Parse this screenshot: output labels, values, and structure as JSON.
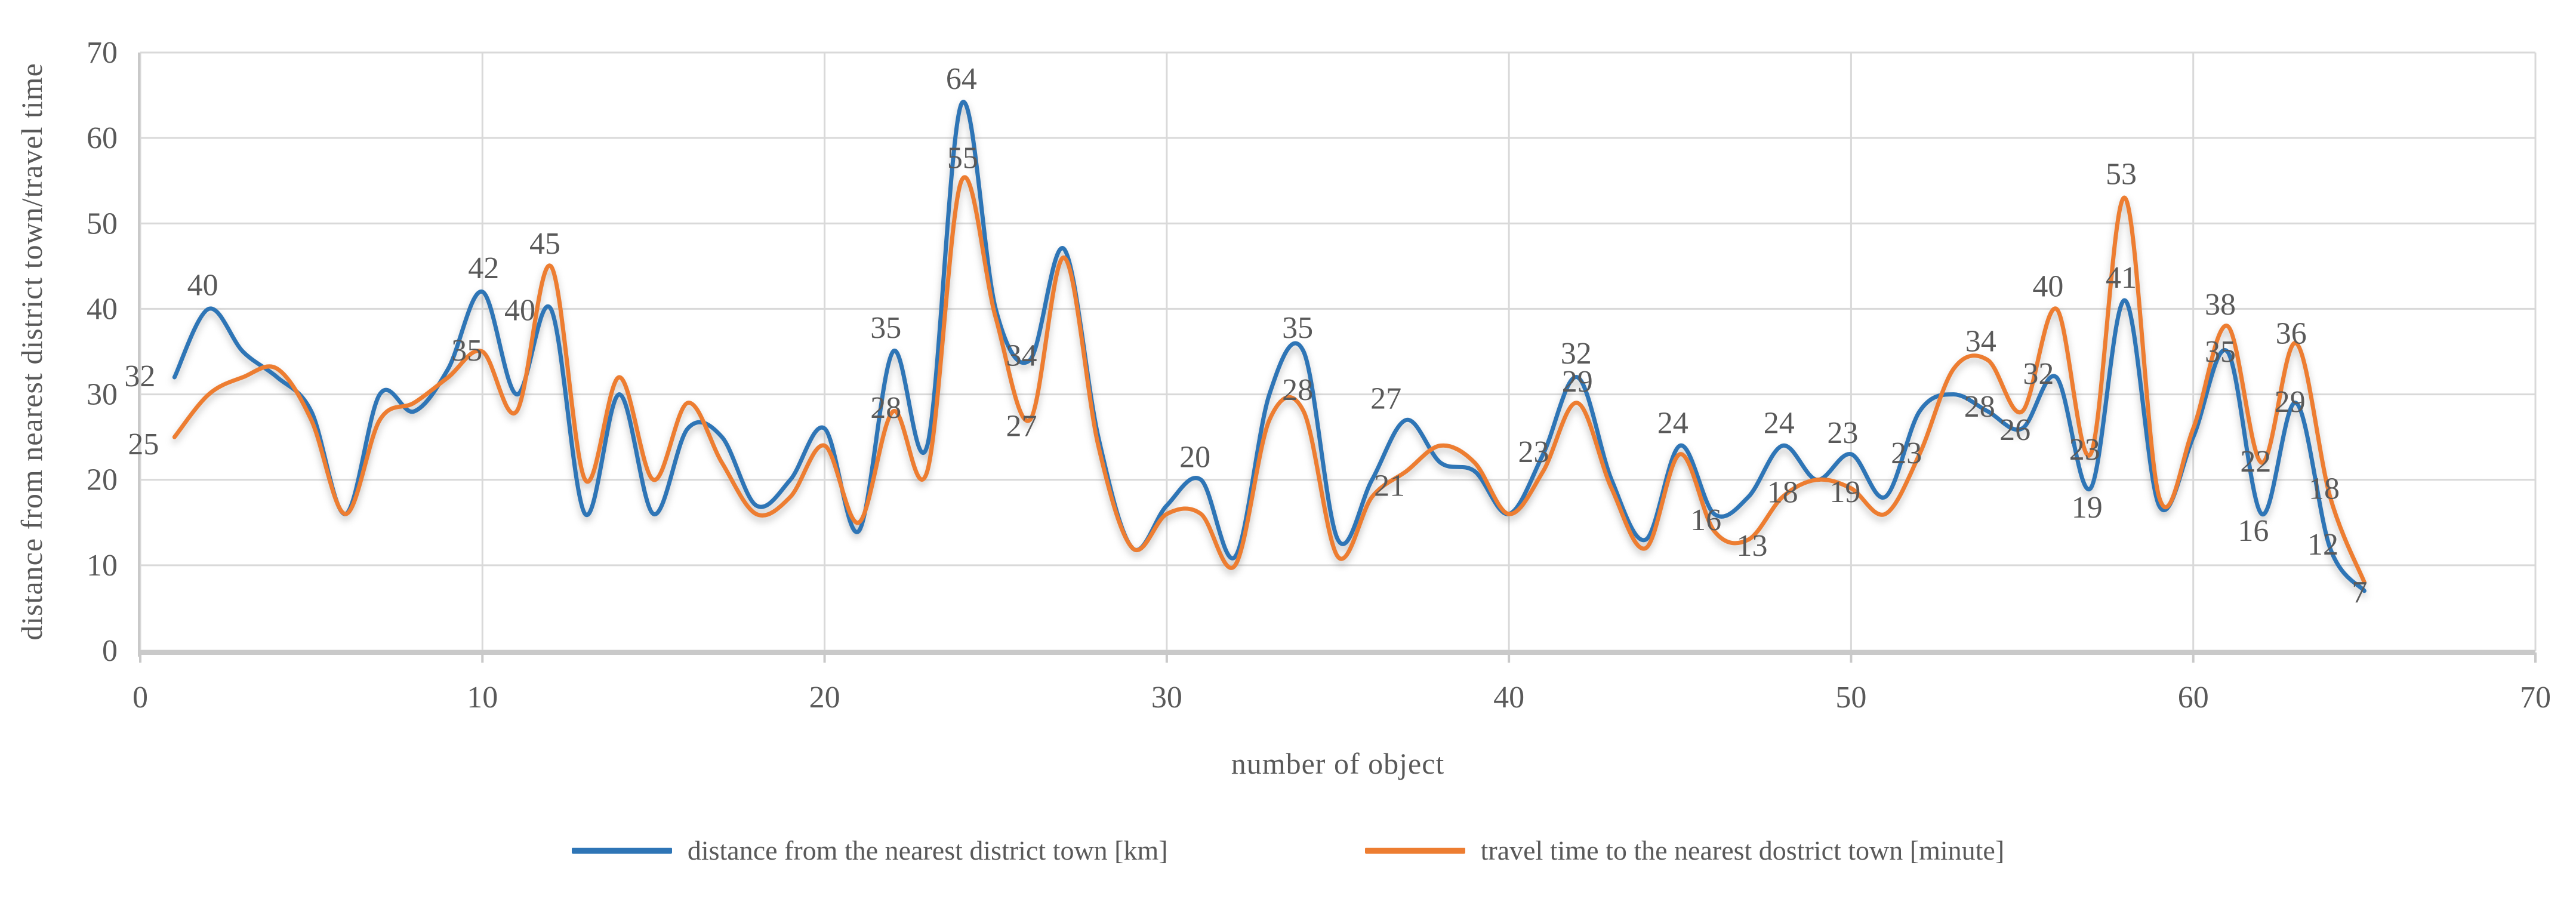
{
  "chart_data": {
    "type": "line",
    "title": "",
    "xlabel": "number of object",
    "ylabel": "distance from nearest district town/travel time",
    "x_axis": {
      "min": 0,
      "max": 70,
      "ticks": [
        0,
        10,
        20,
        30,
        40,
        50,
        60,
        70
      ]
    },
    "y_axis": {
      "min": 0,
      "max": 70,
      "ticks": [
        0,
        10,
        20,
        30,
        40,
        50,
        60,
        70
      ]
    },
    "grid": true,
    "legend_position": "bottom",
    "x": [
      1,
      2,
      3,
      4,
      5,
      6,
      7,
      8,
      9,
      10,
      11,
      12,
      13,
      14,
      15,
      16,
      17,
      18,
      19,
      20,
      21,
      22,
      23,
      24,
      25,
      26,
      27,
      28,
      29,
      30,
      31,
      32,
      33,
      34,
      35,
      36,
      37,
      38,
      39,
      40,
      41,
      42,
      43,
      44,
      45,
      46,
      47,
      48,
      49,
      50,
      51,
      52,
      53,
      54,
      55,
      56,
      57,
      58,
      59,
      60,
      61,
      62,
      63,
      64,
      65
    ],
    "series": [
      {
        "name": "distance from the nearest district town [km]",
        "color": "#2E75B6",
        "values": [
          32,
          40,
          35,
          32,
          28,
          16,
          30,
          28,
          33,
          42,
          30,
          40,
          16,
          30,
          16,
          26,
          25,
          17,
          20,
          26,
          14,
          35,
          24,
          64,
          40,
          34,
          47,
          25,
          12,
          17,
          20,
          11,
          30,
          35,
          13,
          20,
          27,
          22,
          21,
          16,
          23,
          32,
          20,
          13,
          24,
          16,
          18,
          24,
          20,
          23,
          18,
          28,
          30,
          28,
          26,
          32,
          19,
          41,
          17,
          25,
          35,
          16,
          29,
          12,
          7
        ],
        "labeled_points": [
          {
            "x": 1,
            "dx": -58,
            "dy": -2
          },
          {
            "x": 2,
            "dx": -10,
            "dy": -40
          },
          {
            "x": 10,
            "dx": 2,
            "dy": -40
          },
          {
            "x": 12,
            "dx": -52,
            "dy": 2
          },
          {
            "x": 22,
            "dx": -12,
            "dy": -40
          },
          {
            "x": 24,
            "dx": 0,
            "dy": -42
          },
          {
            "x": 26,
            "dx": -14,
            "dy": -8
          },
          {
            "x": 31,
            "dx": -10,
            "dy": -38
          },
          {
            "x": 34,
            "dx": -10,
            "dy": -40
          },
          {
            "x": 37,
            "dx": -34,
            "dy": -36
          },
          {
            "x": 41,
            "dx": -16,
            "dy": -4
          },
          {
            "x": 42,
            "dx": -2,
            "dy": -40
          },
          {
            "x": 45,
            "dx": -12,
            "dy": -38
          },
          {
            "x": 46,
            "dx": -14,
            "dy": 10
          },
          {
            "x": 48,
            "dx": -6,
            "dy": -38
          },
          {
            "x": 50,
            "dx": -14,
            "dy": -36
          },
          {
            "x": 54,
            "dx": -14,
            "dy": -8
          },
          {
            "x": 55,
            "dx": -12,
            "dy": 2
          },
          {
            "x": 56,
            "dx": -30,
            "dy": -6
          },
          {
            "x": 57,
            "dx": -6,
            "dy": 32
          },
          {
            "x": 58,
            "dx": -6,
            "dy": -38
          },
          {
            "x": 61,
            "dx": -12,
            "dy": 0
          },
          {
            "x": 62,
            "dx": -14,
            "dy": 28
          },
          {
            "x": 63,
            "dx": -10,
            "dy": -2
          },
          {
            "x": 64,
            "dx": -12,
            "dy": -6
          },
          {
            "x": 65,
            "dx": -8,
            "dy": 2
          }
        ]
      },
      {
        "name": "travel time to the nearest dostrict town [minute]",
        "color": "#ED7D31",
        "values": [
          25,
          30,
          32,
          33,
          27,
          16,
          27,
          29,
          32,
          35,
          28,
          45,
          20,
          32,
          20,
          29,
          22,
          16,
          18,
          24,
          15,
          28,
          21,
          55,
          39,
          27,
          46,
          24,
          12,
          16,
          16,
          10,
          27,
          28,
          11,
          18,
          21,
          24,
          22,
          16,
          21,
          29,
          19,
          12,
          23,
          14,
          13,
          18,
          20,
          19,
          16,
          23,
          33,
          34,
          28,
          40,
          23,
          53,
          18,
          26,
          38,
          22,
          36,
          18,
          8
        ],
        "labeled_points": [
          {
            "x": 1,
            "dx": -52,
            "dy": 12
          },
          {
            "x": 10,
            "dx": -26,
            "dy": -2
          },
          {
            "x": 12,
            "dx": -10,
            "dy": -38
          },
          {
            "x": 22,
            "dx": -12,
            "dy": -6
          },
          {
            "x": 24,
            "dx": 2,
            "dy": -38
          },
          {
            "x": 26,
            "dx": -14,
            "dy": 10
          },
          {
            "x": 34,
            "dx": -10,
            "dy": -36
          },
          {
            "x": 37,
            "dx": -28,
            "dy": 24
          },
          {
            "x": 42,
            "dx": 0,
            "dy": -36
          },
          {
            "x": 47,
            "dx": 6,
            "dy": 10
          },
          {
            "x": 48,
            "dx": 0,
            "dy": -8
          },
          {
            "x": 50,
            "dx": -10,
            "dy": 6
          },
          {
            "x": 52,
            "dx": -22,
            "dy": -2
          },
          {
            "x": 54,
            "dx": -12,
            "dy": -32
          },
          {
            "x": 56,
            "dx": -14,
            "dy": -38
          },
          {
            "x": 57,
            "dx": -10,
            "dy": -8
          },
          {
            "x": 58,
            "dx": -6,
            "dy": -40
          },
          {
            "x": 61,
            "dx": -12,
            "dy": -36
          },
          {
            "x": 62,
            "dx": -10,
            "dy": -2
          },
          {
            "x": 63,
            "dx": -8,
            "dy": -16
          },
          {
            "x": 64,
            "dx": -10,
            "dy": -14
          }
        ]
      }
    ],
    "colors": {
      "grid": "#D9D9D9",
      "axis": "#C9C9C9",
      "text": "#595959",
      "label_text": "#595959"
    }
  }
}
